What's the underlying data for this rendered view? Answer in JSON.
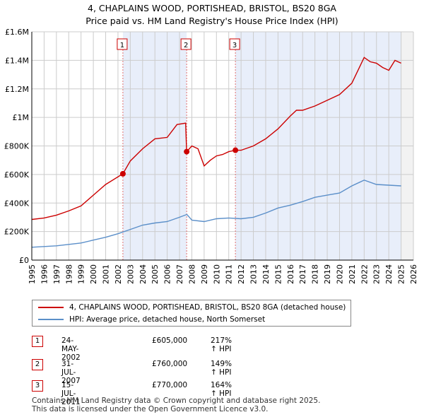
{
  "title_line1": "4, CHAPLAINS WOOD, PORTISHEAD, BRISTOL, BS20 8GA",
  "title_line2": "Price paid vs. HM Land Registry's House Price Index (HPI)",
  "colors": {
    "price": "#cc0000",
    "hpi": "#5b8fc9",
    "shade": "#e8eefa",
    "grid": "#cccccc"
  },
  "chart_data": {
    "type": "line",
    "ylim": [
      0,
      1600000
    ],
    "xlim": [
      1995,
      2026
    ],
    "yticks": [
      0,
      200000,
      400000,
      600000,
      800000,
      1000000,
      1200000,
      1400000,
      1600000
    ],
    "ytick_labels": [
      "£0",
      "£200K",
      "£400K",
      "£600K",
      "£800K",
      "£1M",
      "£1.2M",
      "£1.4M",
      "£1.6M"
    ],
    "xticks": [
      1995,
      1996,
      1997,
      1998,
      1999,
      2000,
      2001,
      2002,
      2003,
      2004,
      2005,
      2006,
      2007,
      2008,
      2009,
      2010,
      2011,
      2012,
      2013,
      2014,
      2015,
      2016,
      2017,
      2018,
      2019,
      2020,
      2021,
      2022,
      2023,
      2024,
      2025,
      2026
    ],
    "series": [
      {
        "name": "4, CHAPLAINS WOOD, PORTISHEAD, BRISTOL, BS20 8GA (detached house)",
        "x": [
          1995,
          1996,
          1997,
          1998,
          1999,
          2000,
          2001,
          2002.4,
          2003,
          2004,
          2005,
          2006,
          2006.8,
          2007.5,
          2007.58,
          2008,
          2008.5,
          2009,
          2009.5,
          2010,
          2010.5,
          2011,
          2011.54,
          2012,
          2013,
          2014,
          2015,
          2016,
          2016.5,
          2017,
          2018,
          2019,
          2020,
          2021,
          2022,
          2022.5,
          2023,
          2023.5,
          2024,
          2024.5,
          2025
        ],
        "y": [
          285000,
          295000,
          315000,
          345000,
          380000,
          455000,
          530000,
          605000,
          695000,
          780000,
          850000,
          860000,
          950000,
          960000,
          760000,
          800000,
          780000,
          660000,
          700000,
          730000,
          740000,
          760000,
          770000,
          770000,
          800000,
          850000,
          920000,
          1010000,
          1050000,
          1050000,
          1080000,
          1120000,
          1160000,
          1240000,
          1420000,
          1390000,
          1380000,
          1350000,
          1330000,
          1400000,
          1380000
        ]
      },
      {
        "name": "HPI: Average price, detached house, North Somerset",
        "x": [
          1995,
          1996,
          1997,
          1998,
          1999,
          2000,
          2001,
          2002,
          2003,
          2004,
          2005,
          2006,
          2007,
          2007.6,
          2008,
          2009,
          2010,
          2011,
          2012,
          2013,
          2014,
          2015,
          2016,
          2017,
          2018,
          2019,
          2020,
          2021,
          2022,
          2023,
          2024,
          2025
        ],
        "y": [
          90000,
          95000,
          100000,
          110000,
          120000,
          140000,
          160000,
          185000,
          215000,
          245000,
          260000,
          270000,
          300000,
          320000,
          280000,
          270000,
          290000,
          295000,
          290000,
          300000,
          330000,
          365000,
          385000,
          410000,
          440000,
          455000,
          470000,
          520000,
          560000,
          530000,
          525000,
          520000
        ]
      }
    ],
    "sales": [
      {
        "label": "1",
        "x": 2002.4,
        "y": 605000
      },
      {
        "label": "2",
        "x": 2007.58,
        "y": 760000
      },
      {
        "label": "3",
        "x": 2011.54,
        "y": 770000
      }
    ],
    "forecast_from": 2025.0
  },
  "legend": {
    "price": "4, CHAPLAINS WOOD, PORTISHEAD, BRISTOL, BS20 8GA (detached house)",
    "hpi": "HPI: Average price, detached house, North Somerset"
  },
  "transactions": [
    {
      "num": "1",
      "date": "24-MAY-2002",
      "price": "£605,000",
      "hpi": "217% ↑ HPI"
    },
    {
      "num": "2",
      "date": "31-JUL-2007",
      "price": "£760,000",
      "hpi": "149% ↑ HPI"
    },
    {
      "num": "3",
      "date": "15-JUL-2011",
      "price": "£770,000",
      "hpi": "164% ↑ HPI"
    }
  ],
  "footer_line1": "Contains HM Land Registry data © Crown copyright and database right 2025.",
  "footer_line2": "This data is licensed under the Open Government Licence v3.0."
}
